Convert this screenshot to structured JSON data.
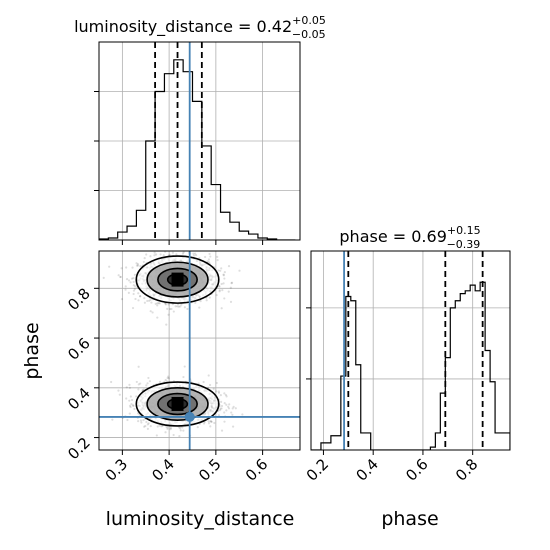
{
  "chart_data": [
    {
      "type": "histogram",
      "panel": "luminosity_distance marginal",
      "title": {
        "base": "luminosity_distance = 0.42",
        "sup": "+0.05",
        "sub": "−0.05"
      },
      "xlim": [
        0.25,
        0.68
      ],
      "bin_edges": [
        0.25,
        0.27,
        0.29,
        0.31,
        0.33,
        0.35,
        0.37,
        0.39,
        0.41,
        0.43,
        0.45,
        0.47,
        0.49,
        0.51,
        0.53,
        0.55,
        0.57,
        0.59,
        0.61,
        0.63,
        0.65,
        0.67
      ],
      "counts": [
        1,
        2,
        8,
        14,
        30,
        100,
        150,
        168,
        182,
        170,
        140,
        95,
        56,
        28,
        18,
        9,
        6,
        2,
        1,
        0,
        0
      ],
      "ymax": 200,
      "quantiles": [
        0.37,
        0.418,
        0.47
      ],
      "truth": 0.444
    },
    {
      "type": "scatter",
      "panel": "phase vs luminosity_distance",
      "xlim": [
        0.25,
        0.68
      ],
      "ylim": [
        0.15,
        0.95
      ],
      "xticks": [
        "0.3",
        "0.4",
        "0.5",
        "0.6"
      ],
      "yticks": [
        "0.2",
        "0.4",
        "0.6",
        "0.8"
      ],
      "clusters": [
        {
          "x": 0.418,
          "y": 0.835,
          "sx": 0.042,
          "sy": 0.045
        },
        {
          "x": 0.418,
          "y": 0.335,
          "sx": 0.042,
          "sy": 0.042
        }
      ],
      "truth": {
        "x": 0.444,
        "y": 0.283
      }
    },
    {
      "type": "histogram",
      "panel": "phase marginal",
      "title": {
        "base": "phase = 0.69",
        "sup": "+0.15",
        "sub": "−0.39"
      },
      "xlim": [
        0.15,
        0.95
      ],
      "bin_edges": [
        0.15,
        0.19,
        0.23,
        0.27,
        0.29,
        0.31,
        0.33,
        0.35,
        0.37,
        0.39,
        0.63,
        0.65,
        0.67,
        0.69,
        0.71,
        0.73,
        0.75,
        0.77,
        0.79,
        0.81,
        0.83,
        0.85,
        0.87,
        0.89,
        0.91,
        0.95
      ],
      "counts": [
        0,
        5,
        10,
        52,
        108,
        105,
        60,
        12,
        12,
        0,
        2,
        12,
        40,
        65,
        100,
        105,
        110,
        112,
        116,
        112,
        118,
        70,
        48,
        12,
        12
      ],
      "ymax": 140,
      "quantiles": [
        0.3,
        0.69,
        0.84
      ],
      "truth": 0.283,
      "xticks": [
        "0.2",
        "0.4",
        "0.6",
        "0.8"
      ]
    }
  ],
  "axes": {
    "x_label_left": "luminosity_distance",
    "x_label_right": "phase",
    "y_label": "phase"
  }
}
